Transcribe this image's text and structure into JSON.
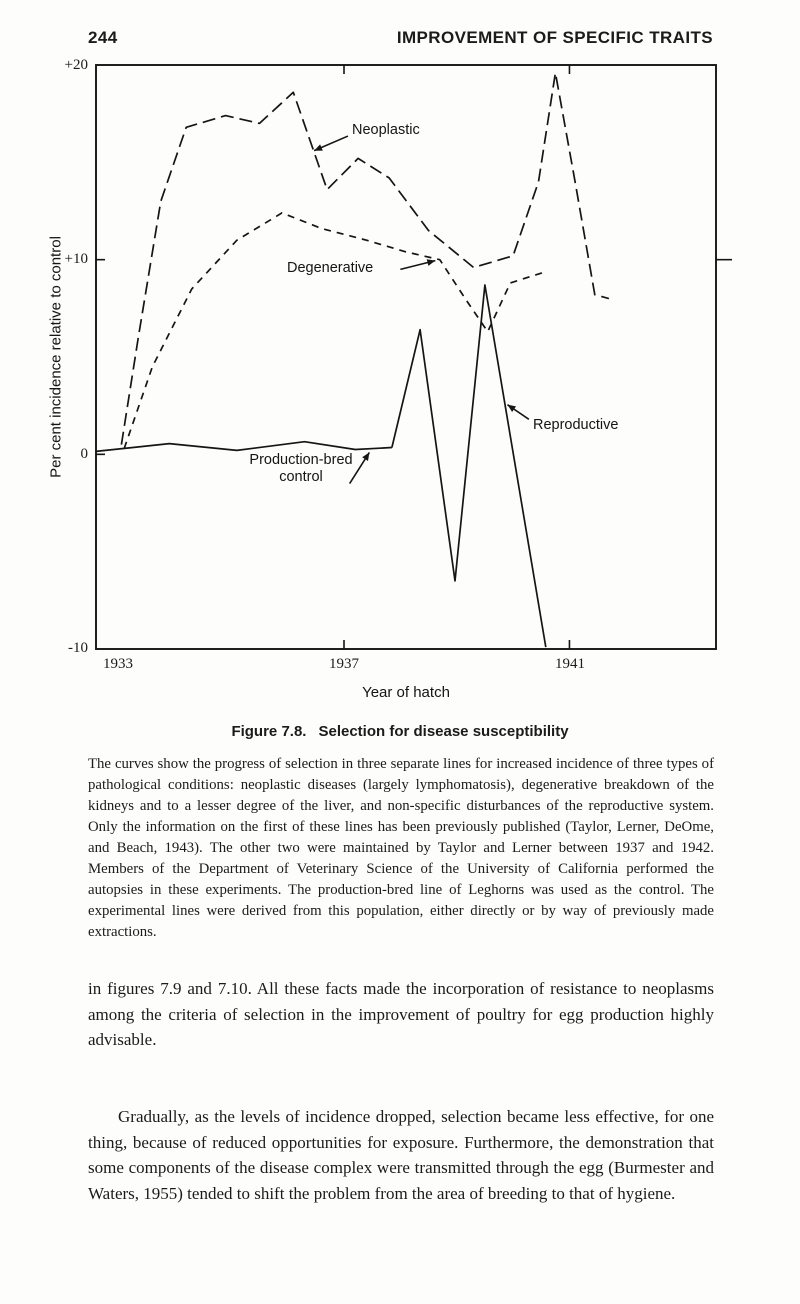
{
  "page": {
    "number": "244",
    "running_title": "IMPROVEMENT OF SPECIFIC TRAITS"
  },
  "figure": {
    "caption_label": "Figure 7.8.",
    "caption_text": "Selection for disease susceptibility",
    "legend_text": "The curves show the progress of selection in three separate lines for increased incidence of three types of pathological conditions: neoplastic diseases (largely lymphomatosis), degenerative breakdown of the kidneys and to a lesser degree of the liver, and non-specific disturbances of the reproductive system. Only the information on the first of these lines has been previously published (Taylor, Lerner, DeOme, and Beach, 1943). The other two were maintained by Taylor and Lerner between 1937 and 1942. Members of the Department of Veterinary Science of the University of California performed the autopsies in these experiments. The production-bred line of Leghorns was used as the control. The experimental lines were derived from this population, either directly or by way of previously made extractions."
  },
  "body": {
    "paragraph_1": "in figures 7.9 and 7.10. All these facts made the incorporation of resistance to neoplasms among the criteria of selection in the improvement of poultry for egg production highly advisable.",
    "paragraph_2": "Gradually, as the levels of incidence dropped, selection became less effective, for one thing, because of reduced opportunities for exposure. Furthermore, the demonstration that some components of the disease complex were transmitted through the egg (Burmester and Waters, 1955) tended to shift the problem from the area of breeding to that of hygiene."
  },
  "chart_data": {
    "type": "line",
    "title": "Figure 7.8. Selection for disease susceptibility",
    "xlabel": "Year of hatch",
    "ylabel": "Per cent incidence relative to control",
    "xlim": [
      1932.6,
      1943.6
    ],
    "ylim": [
      -10,
      20
    ],
    "grid": false,
    "line_color": "#151515",
    "x_ticks": [
      {
        "value": 1933,
        "label": "1933",
        "tick": false
      },
      {
        "value": 1937,
        "label": "1937"
      },
      {
        "value": 1941,
        "label": "1941"
      }
    ],
    "y_ticks": [
      {
        "value": 20,
        "label": "+20",
        "tick": false
      },
      {
        "value": 10,
        "label": "+10",
        "right_tick": true
      },
      {
        "value": 0,
        "label": "0"
      },
      {
        "value": -10,
        "label": "-10",
        "tick": false
      }
    ],
    "series": [
      {
        "name": "Neoplastic",
        "line_style": "dashed",
        "points": [
          [
            1933.05,
            0.5
          ],
          [
            1933.35,
            6.0
          ],
          [
            1933.75,
            13.0
          ],
          [
            1934.2,
            16.8
          ],
          [
            1934.9,
            17.4
          ],
          [
            1935.5,
            17.0
          ],
          [
            1936.1,
            18.6
          ],
          [
            1936.7,
            13.6
          ],
          [
            1937.25,
            15.2
          ],
          [
            1937.8,
            14.2
          ],
          [
            1938.5,
            11.5
          ],
          [
            1939.3,
            9.6
          ],
          [
            1940.0,
            10.2
          ],
          [
            1940.45,
            14.0
          ],
          [
            1940.75,
            19.6
          ],
          [
            1941.1,
            14.0
          ],
          [
            1941.45,
            8.2
          ],
          [
            1941.7,
            8.0
          ]
        ]
      },
      {
        "name": "Degenerative",
        "line_style": "short-dashed",
        "points": [
          [
            1933.1,
            0.3
          ],
          [
            1933.6,
            4.5
          ],
          [
            1934.3,
            8.5
          ],
          [
            1935.1,
            11.0
          ],
          [
            1935.9,
            12.4
          ],
          [
            1936.6,
            11.6
          ],
          [
            1937.4,
            11.0
          ],
          [
            1938.1,
            10.4
          ],
          [
            1938.7,
            10.0
          ],
          [
            1939.15,
            8.0
          ],
          [
            1939.55,
            6.3
          ],
          [
            1939.95,
            8.8
          ],
          [
            1940.6,
            9.4
          ]
        ]
      },
      {
        "name": "Production-bred control",
        "line_style": "solid",
        "points": [
          [
            1932.6,
            0.15
          ],
          [
            1933.9,
            0.55
          ],
          [
            1935.1,
            0.2
          ],
          [
            1936.3,
            0.65
          ],
          [
            1937.2,
            0.25
          ],
          [
            1937.85,
            0.35
          ]
        ]
      },
      {
        "name": "Reproductive",
        "line_style": "solid",
        "points": [
          [
            1937.85,
            0.35
          ],
          [
            1938.35,
            6.4
          ],
          [
            1938.97,
            -6.5
          ],
          [
            1939.5,
            8.7
          ],
          [
            1940.58,
            -9.9
          ]
        ]
      }
    ],
    "annotations": [
      {
        "label": "Neoplastic",
        "arrow": {
          "from": [
            1937.07,
            16.35
          ],
          "to": [
            1936.47,
            15.6
          ]
        }
      },
      {
        "label": "Degenerative",
        "arrow": {
          "from": [
            1938.0,
            9.5
          ],
          "to": [
            1938.62,
            9.95
          ]
        }
      },
      {
        "label": "Reproductive",
        "arrow": {
          "from": [
            1940.28,
            1.8
          ],
          "to": [
            1939.9,
            2.55
          ]
        }
      },
      {
        "lines": [
          "Production-bred",
          "control"
        ],
        "arrow": {
          "from": [
            1937.1,
            -1.5
          ],
          "to": [
            1937.45,
            0.1
          ]
        }
      }
    ]
  }
}
